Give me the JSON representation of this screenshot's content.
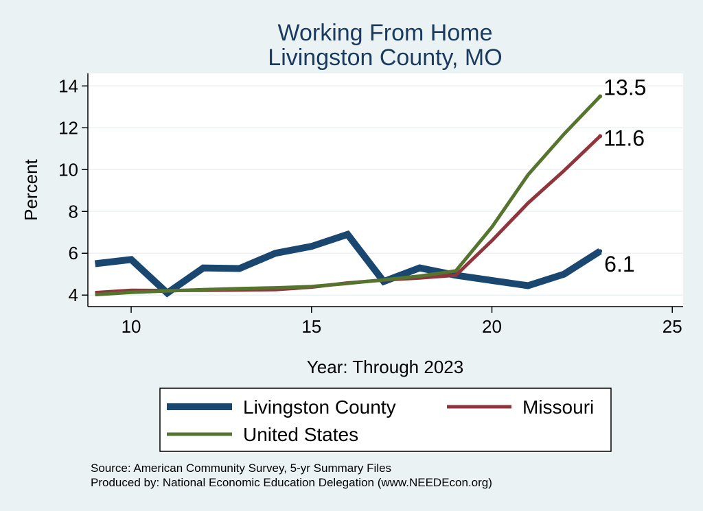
{
  "chart_data": {
    "type": "line",
    "title": [
      "Working From Home",
      "Livingston County, MO"
    ],
    "xlabel": "Year: Through 2023",
    "ylabel": "Percent",
    "xlim": [
      8.8,
      25.3
    ],
    "ylim": [
      3.45,
      14.6
    ],
    "xticks": [
      10,
      15,
      20,
      25
    ],
    "yticks": [
      4,
      6,
      8,
      10,
      12,
      14
    ],
    "grid": true,
    "legend_position": "bottom",
    "x": [
      9,
      10,
      11,
      12,
      13,
      14,
      15,
      16,
      17,
      18,
      19,
      20,
      21,
      22,
      23
    ],
    "series": [
      {
        "name": "Livingston County",
        "color": "#1a476f",
        "values": [
          5.5,
          5.7,
          4.1,
          5.3,
          5.27,
          6.0,
          6.33,
          6.9,
          4.65,
          5.3,
          4.95,
          4.7,
          4.45,
          5.0,
          6.1
        ],
        "end_label": "6.1"
      },
      {
        "name": "Missouri",
        "color": "#90353b",
        "values": [
          4.12,
          4.23,
          4.22,
          4.23,
          4.24,
          4.26,
          4.38,
          4.58,
          4.72,
          4.82,
          4.95,
          6.6,
          8.4,
          9.95,
          11.6
        ],
        "end_label": "11.6"
      },
      {
        "name": "United States",
        "color": "#55752f",
        "values": [
          4.02,
          4.13,
          4.2,
          4.26,
          4.31,
          4.35,
          4.41,
          4.56,
          4.73,
          4.91,
          5.16,
          7.25,
          9.75,
          11.7,
          13.5
        ],
        "end_label": "13.5"
      }
    ]
  },
  "footer": {
    "source": "Source: American Community Survey, 5-yr Summary Files",
    "produced_by": "Produced by: National Economic Education Delegation (www.NEEDEcon.org)"
  }
}
